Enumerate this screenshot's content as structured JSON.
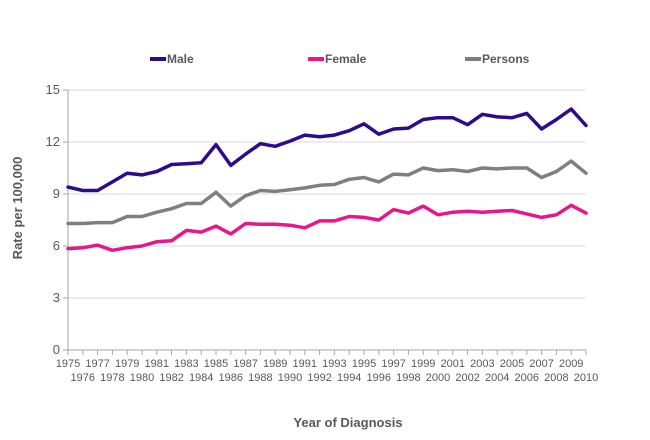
{
  "chart_data": {
    "type": "line",
    "title": "",
    "xlabel": "Year of Diagnosis",
    "ylabel": "Rate per 100,000",
    "ylim": [
      0,
      15
    ],
    "yticks": [
      0,
      3,
      6,
      9,
      12,
      15
    ],
    "grid": true,
    "legend_position": "top",
    "categories": [
      "1975",
      "1976",
      "1977",
      "1978",
      "1979",
      "1980",
      "1981",
      "1982",
      "1983",
      "1984",
      "1985",
      "1986",
      "1987",
      "1988",
      "1989",
      "1990",
      "1991",
      "1992",
      "1993",
      "1994",
      "1995",
      "1996",
      "1997",
      "1998",
      "1999",
      "2000",
      "2001",
      "2002",
      "2003",
      "2004",
      "2005",
      "2006",
      "2007",
      "2008",
      "2009",
      "2010"
    ],
    "series": [
      {
        "name": "Male",
        "color": "#2e0a8c",
        "values": [
          9.4,
          9.2,
          9.2,
          9.7,
          10.2,
          10.1,
          10.3,
          10.7,
          10.75,
          10.8,
          11.85,
          10.65,
          11.3,
          11.9,
          11.75,
          12.05,
          12.4,
          12.3,
          12.4,
          12.65,
          13.05,
          12.45,
          12.75,
          12.8,
          13.3,
          13.4,
          13.4,
          13.0,
          13.6,
          13.45,
          13.4,
          13.65,
          12.75,
          13.3,
          13.9,
          12.95
        ]
      },
      {
        "name": "Female",
        "color": "#e6168c",
        "values": [
          5.85,
          5.9,
          6.05,
          5.75,
          5.9,
          6.0,
          6.25,
          6.3,
          6.9,
          6.8,
          7.15,
          6.7,
          7.3,
          7.25,
          7.25,
          7.2,
          7.05,
          7.45,
          7.45,
          7.7,
          7.65,
          7.5,
          8.1,
          7.9,
          8.3,
          7.8,
          7.95,
          8.0,
          7.95,
          8.0,
          8.05,
          7.85,
          7.65,
          7.8,
          8.35,
          7.9
        ]
      },
      {
        "name": "Persons",
        "color": "#7f7f7f",
        "values": [
          7.3,
          7.3,
          7.35,
          7.35,
          7.7,
          7.7,
          7.95,
          8.15,
          8.45,
          8.45,
          9.1,
          8.3,
          8.9,
          9.2,
          9.15,
          9.25,
          9.35,
          9.5,
          9.55,
          9.85,
          9.95,
          9.7,
          10.15,
          10.1,
          10.5,
          10.35,
          10.4,
          10.3,
          10.5,
          10.45,
          10.5,
          10.5,
          9.95,
          10.3,
          10.9,
          10.2
        ]
      }
    ]
  }
}
